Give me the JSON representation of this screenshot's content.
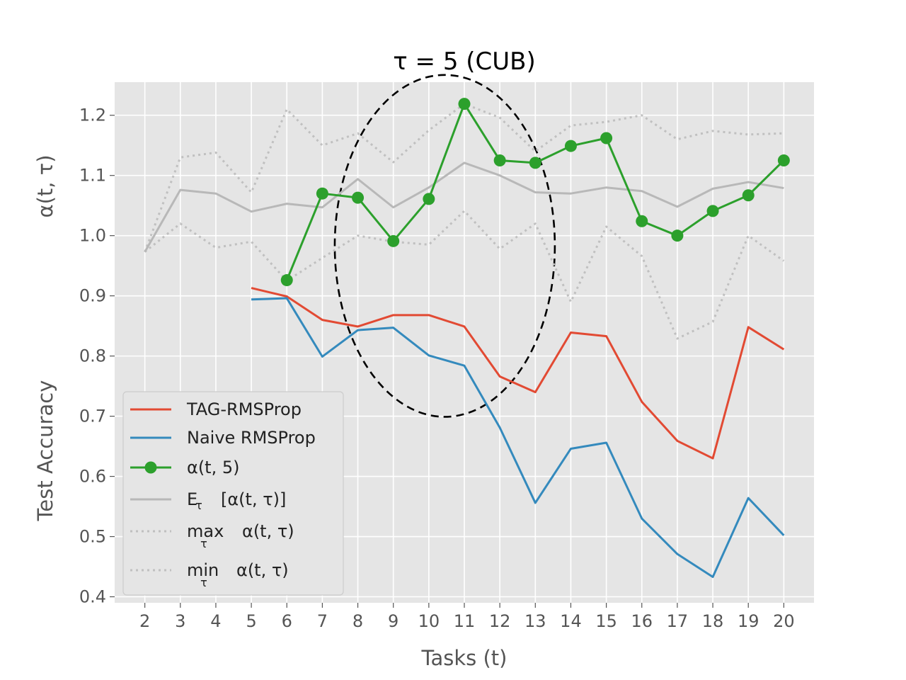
{
  "chart_data": {
    "type": "line",
    "title": "τ = 5 (CUB)",
    "xlabel": "Tasks (t)",
    "ylabel_left": "Test Accuracy",
    "ylabel_left_upper": "α(t, τ)",
    "x_ticks": [
      2,
      3,
      4,
      5,
      6,
      7,
      8,
      9,
      10,
      11,
      12,
      13,
      14,
      15,
      16,
      17,
      18,
      19,
      20
    ],
    "y_ticks": [
      "0.4",
      "0.5",
      "0.6",
      "0.7",
      "0.8",
      "0.9",
      "1.0",
      "1.1",
      "1.2"
    ],
    "xlim": [
      1.15,
      20.85
    ],
    "ylim": [
      0.39,
      1.255
    ],
    "grid": true,
    "legend_position": "lower-left",
    "series": [
      {
        "name": "TAG-RMSProp",
        "color": "#e24a33",
        "style": "solid",
        "x": [
          5,
          6,
          7,
          8,
          9,
          10,
          11,
          12,
          13,
          14,
          15,
          16,
          17,
          18,
          19,
          20
        ],
        "y": [
          0.913,
          0.899,
          0.86,
          0.849,
          0.868,
          0.868,
          0.849,
          0.766,
          0.74,
          0.839,
          0.833,
          0.724,
          0.659,
          0.63,
          0.848,
          0.811
        ]
      },
      {
        "name": "Naive RMSProp",
        "color": "#348abd",
        "style": "solid",
        "x": [
          5,
          6,
          7,
          8,
          9,
          10,
          11,
          12,
          13,
          14,
          15,
          16,
          17,
          18,
          19,
          20
        ],
        "y": [
          0.894,
          0.896,
          0.799,
          0.843,
          0.847,
          0.801,
          0.784,
          0.681,
          0.556,
          0.646,
          0.656,
          0.53,
          0.471,
          0.433,
          0.564,
          0.502
        ]
      },
      {
        "name": "α(t, 5)",
        "color": "#2ca02c",
        "style": "markers",
        "x": [
          6,
          7,
          8,
          9,
          10,
          11,
          12,
          13,
          14,
          15,
          16,
          17,
          18,
          19,
          20
        ],
        "y": [
          0.926,
          1.07,
          1.063,
          0.991,
          1.061,
          1.219,
          1.125,
          1.121,
          1.149,
          1.162,
          1.024,
          1.0,
          1.041,
          1.067,
          1.125
        ]
      },
      {
        "name": "E_τ [α(t, τ)]",
        "color": "#b8b8b8",
        "style": "solid",
        "x": [
          2,
          3,
          4,
          5,
          6,
          7,
          8,
          9,
          10,
          11,
          12,
          13,
          14,
          15,
          16,
          17,
          18,
          19,
          20
        ],
        "y": [
          0.973,
          1.076,
          1.07,
          1.04,
          1.053,
          1.047,
          1.094,
          1.047,
          1.08,
          1.121,
          1.1,
          1.072,
          1.07,
          1.08,
          1.074,
          1.048,
          1.078,
          1.089,
          1.079
        ]
      },
      {
        "name": "max_τ α(t, τ)",
        "color": "#c0c0c0",
        "style": "dotted",
        "x": [
          2,
          3,
          4,
          5,
          6,
          7,
          8,
          9,
          10,
          11,
          12,
          13,
          14,
          15,
          16,
          17,
          18,
          19,
          20
        ],
        "y": [
          0.973,
          1.13,
          1.138,
          1.072,
          1.21,
          1.15,
          1.17,
          1.122,
          1.175,
          1.219,
          1.196,
          1.14,
          1.183,
          1.189,
          1.2,
          1.16,
          1.174,
          1.168,
          1.17
        ]
      },
      {
        "name": "min_τ α(t, τ)",
        "color": "#c0c0c0",
        "style": "dotted",
        "x": [
          2,
          3,
          4,
          5,
          6,
          7,
          8,
          9,
          10,
          11,
          12,
          13,
          14,
          15,
          16,
          17,
          18,
          19,
          20
        ],
        "y": [
          0.973,
          1.02,
          0.98,
          0.99,
          0.925,
          0.963,
          1.0,
          0.99,
          0.985,
          1.041,
          0.978,
          1.02,
          0.89,
          1.015,
          0.966,
          0.829,
          0.857,
          1.0,
          0.958
        ]
      }
    ],
    "annotation": {
      "shape": "dashed-ellipse",
      "color": "#000000",
      "center": [
        10.45,
        0.983
      ],
      "radius": [
        3.1,
        0.284
      ]
    }
  },
  "legend": {
    "items": [
      {
        "label": "TAG-RMSProp",
        "color": "#e24a33",
        "style": "solid"
      },
      {
        "label": "Naive RMSProp",
        "color": "#348abd",
        "style": "solid"
      },
      {
        "label": "α(t, 5)",
        "color": "#2ca02c",
        "style": "markers"
      },
      {
        "label": "E",
        "sub": "τ",
        "tail": "[α(t, τ)]",
        "color": "#b8b8b8",
        "style": "solid"
      },
      {
        "label": "max",
        "sub": "τ",
        "tail": "α(t, τ)",
        "color": "#c0c0c0",
        "style": "dotted"
      },
      {
        "label": "min",
        "sub": "τ",
        "tail": "α(t, τ)",
        "color": "#c0c0c0",
        "style": "dotted"
      }
    ]
  },
  "colors": {
    "plot_background": "#e5e5e5",
    "grid": "#ffffff"
  }
}
